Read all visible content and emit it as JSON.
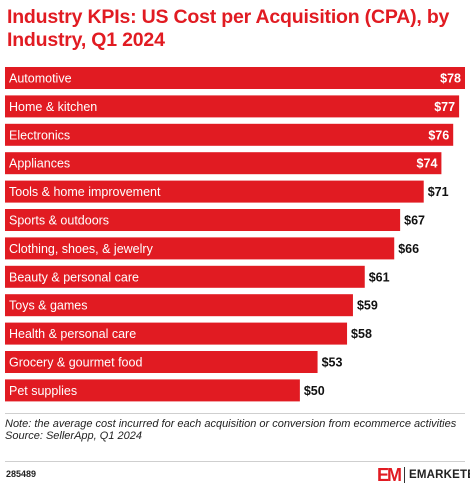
{
  "chart_data": {
    "type": "bar",
    "orientation": "horizontal",
    "title": "Industry KPIs: US Cost per Acquisition (CPA), by Industry, Q1 2024",
    "categories": [
      "Automotive",
      "Home & kitchen",
      "Electronics",
      "Appliances",
      "Tools & home improvement",
      "Sports & outdoors",
      "Clothing, shoes, & jewelry",
      "Beauty & personal care",
      "Toys & games",
      "Health & personal care",
      "Grocery & gourmet food",
      "Pet supplies"
    ],
    "values": [
      78,
      77,
      76,
      74,
      71,
      67,
      66,
      61,
      59,
      58,
      53,
      50
    ],
    "value_labels": [
      "$78",
      "$77",
      "$76",
      "$74",
      "$71",
      "$67",
      "$66",
      "$61",
      "$59",
      "$58",
      "$53",
      "$50"
    ],
    "xlim": [
      0,
      78
    ],
    "bar_color": "#e11b22",
    "grid": false,
    "legend": "none"
  },
  "note": "Note: the average cost incurred for each acquisition or conversion from ecommerce activities",
  "source": "Source: SellerApp, Q1 2024",
  "chart_id": "285489",
  "brand": {
    "mark": "EM",
    "name": "EMARKETER",
    "color": "#e11b22"
  }
}
